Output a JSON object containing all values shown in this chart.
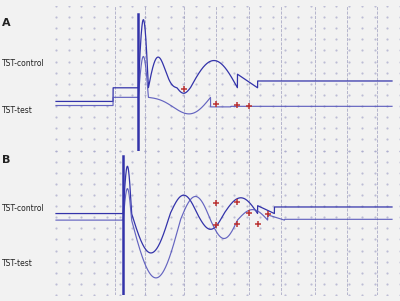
{
  "bg_color": "#f0f0f8",
  "fig_bg": "#f2f2f2",
  "blue_dark": "#3333aa",
  "blue_mid": "#5555bb",
  "red_mark": "#bb3333",
  "dash_color": "#9999bb",
  "dot_color": "#aaaacc",
  "label_color": "#222222",
  "label_A": "A",
  "label_B": "B",
  "label_ctrl": "TST-control",
  "label_test": "TST-test",
  "fig_width": 4.0,
  "fig_height": 3.01,
  "dpi": 100,
  "vlines_A": [
    0.175,
    0.265,
    0.38,
    0.475,
    0.575,
    0.67,
    0.77,
    0.865,
    0.955
  ],
  "vlines_B": [
    0.175,
    0.265,
    0.38,
    0.475,
    0.575,
    0.67,
    0.77,
    0.865,
    0.955
  ]
}
